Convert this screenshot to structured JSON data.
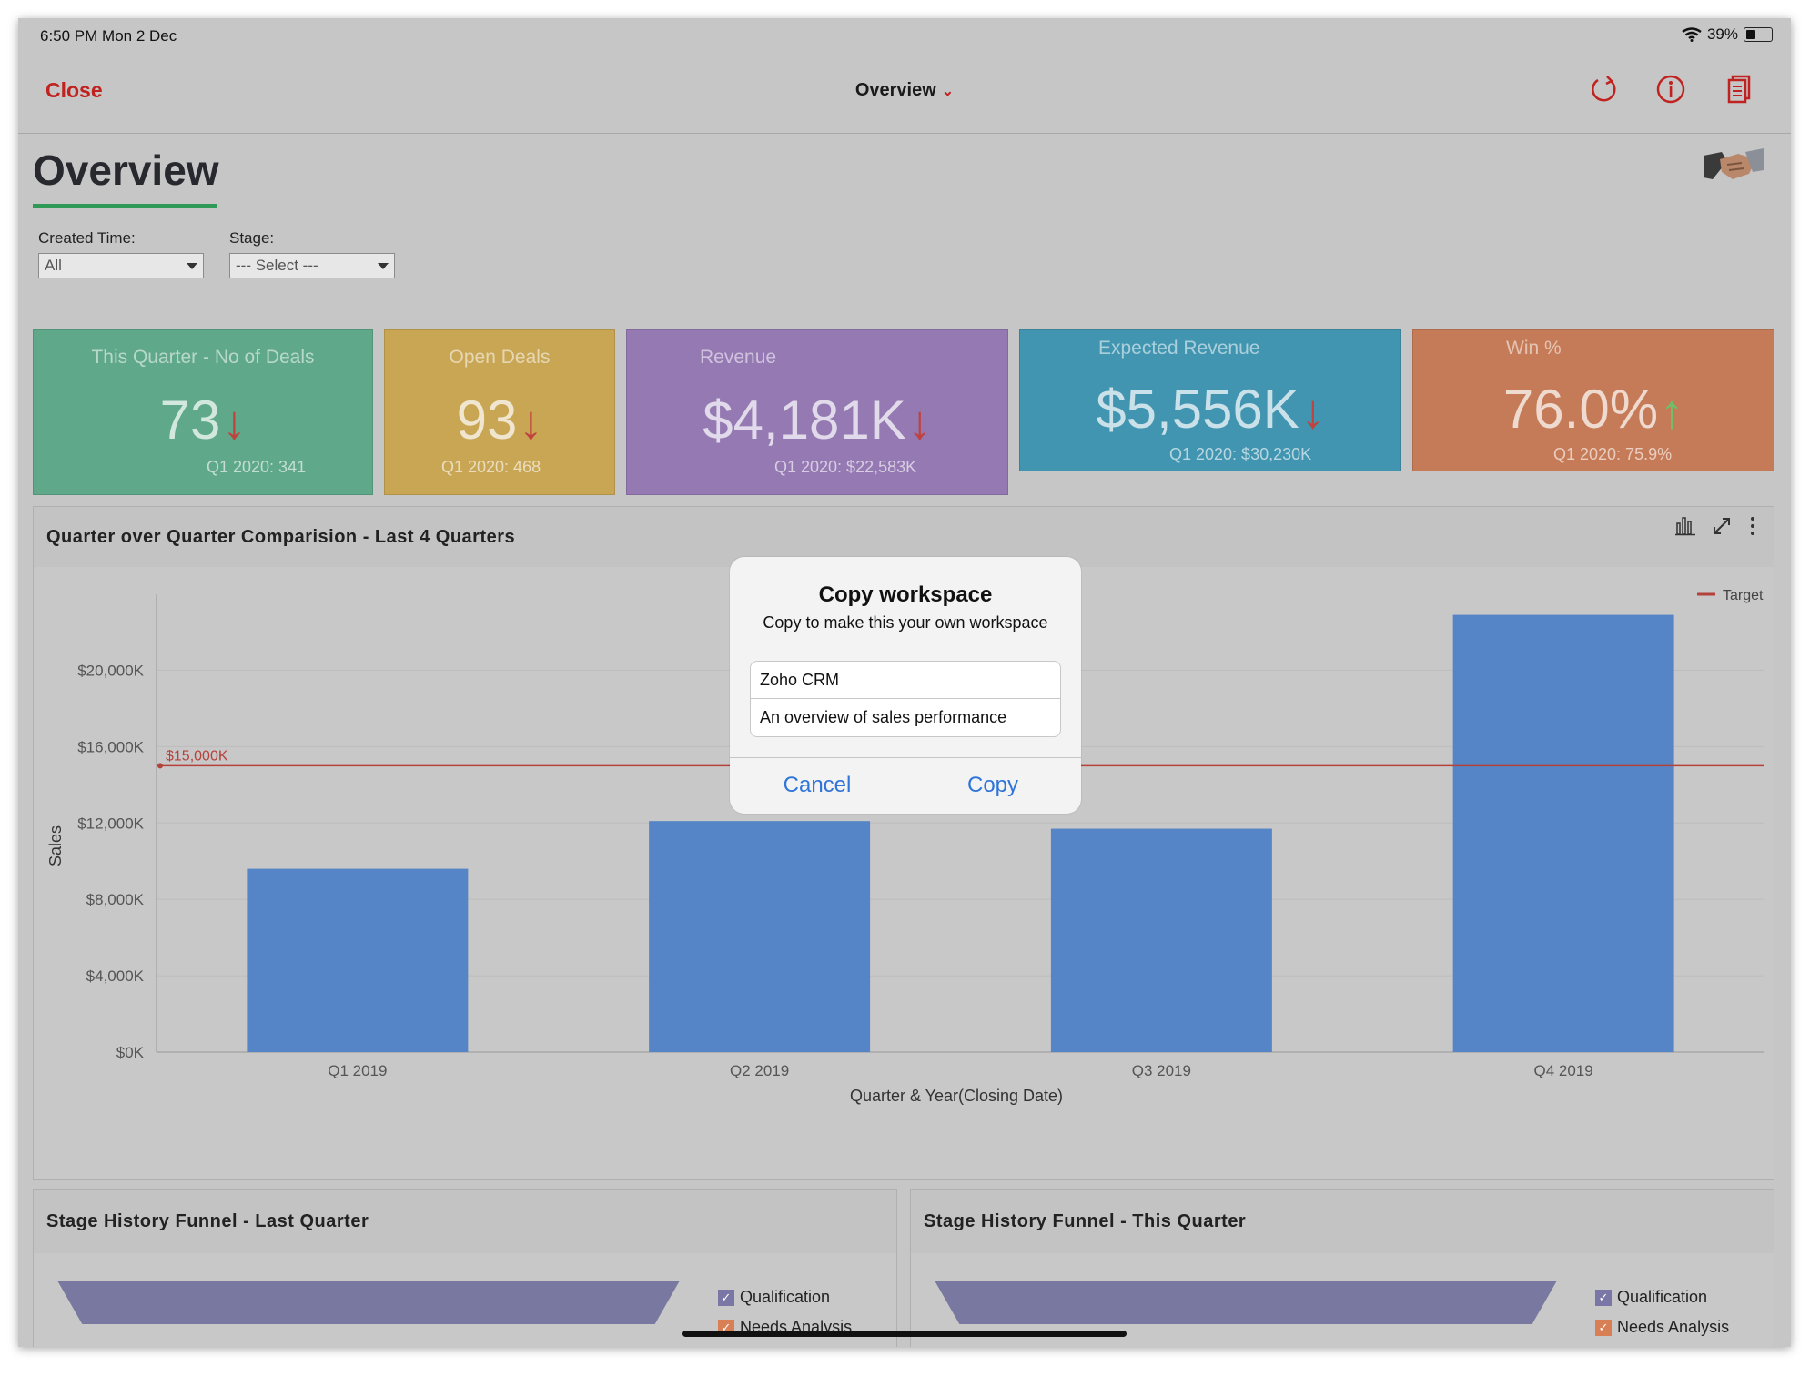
{
  "status_bar": {
    "time": "6:50 PM   Mon 2 Dec",
    "battery": "39%",
    "battery_level": 0.39
  },
  "nav": {
    "close_label": "Close",
    "title": "Overview",
    "icons": [
      "refresh-icon",
      "info-icon",
      "copy-icon"
    ]
  },
  "page": {
    "title": "Overview"
  },
  "filters": {
    "created_time": {
      "label": "Created Time:",
      "value": "All"
    },
    "stage": {
      "label": "Stage:",
      "value": "--- Select ---"
    }
  },
  "kpis": [
    {
      "title": "This Quarter - No of Deals",
      "value": "73",
      "arrow": "↓",
      "trend": "down",
      "sub": "Q1 2020: 341",
      "color": "#5fa889"
    },
    {
      "title": "Open Deals",
      "value": "93",
      "arrow": "↓",
      "trend": "down",
      "sub": "Q1 2020: 468",
      "color": "#c8a654"
    },
    {
      "title": "Revenue",
      "value": "$4,181K",
      "arrow": "↓",
      "trend": "down",
      "sub": "Q1 2020: $22,583K",
      "color": "#9579b3"
    },
    {
      "title": "Expected Revenue",
      "value": "$5,556K",
      "arrow": "↓",
      "trend": "down",
      "sub": "Q1 2020: $30,230K",
      "color": "#4195b0"
    },
    {
      "title": "Win %",
      "value": "76.0%",
      "arrow": "↑",
      "trend": "up",
      "sub": "Q1 2020: 75.9%",
      "color": "#c57b57"
    }
  ],
  "trend_colors": {
    "down": "#c0423e",
    "up": "#6fbf6a"
  },
  "chart": {
    "title": "Quarter over Quarter Comparision - Last 4 Quarters",
    "tools": [
      "bar-chart-icon",
      "expand-icon",
      "more-icon"
    ]
  },
  "chart_data": {
    "type": "bar",
    "categories": [
      "Q1 2019",
      "Q2 2019",
      "Q3 2019",
      "Q4 2019"
    ],
    "values": [
      9600,
      12100,
      11700,
      22900
    ],
    "xlabel": "Quarter & Year(Closing Date)",
    "ylabel": "Sales",
    "ylim": [
      0,
      23500
    ],
    "yticks": [
      0,
      4000,
      8000,
      12000,
      16000,
      20000
    ],
    "ytick_labels": [
      "$0K",
      "$4,000K",
      "$8,000K",
      "$12,000K",
      "$16,000K",
      "$20,000K"
    ],
    "target": {
      "name": "Target",
      "value": 15000,
      "label": "$15,000K"
    },
    "bar_color": "#5585c6",
    "target_color": "#b5413b",
    "grid": true,
    "legend_position": "top-right"
  },
  "funnels": [
    {
      "title": "Stage History Funnel - Last Quarter",
      "legend": [
        "Qualification",
        "Needs Analysis"
      ]
    },
    {
      "title": "Stage History Funnel - This Quarter",
      "legend": [
        "Qualification",
        "Needs Analysis"
      ]
    }
  ],
  "legend_colors": [
    "#7a77a6",
    "#d87f55"
  ],
  "dialog": {
    "title": "Copy workspace",
    "message": "Copy to make this your own workspace",
    "name_value": "Zoho CRM",
    "description_value": "An overview of sales performance",
    "cancel_label": "Cancel",
    "copy_label": "Copy"
  }
}
